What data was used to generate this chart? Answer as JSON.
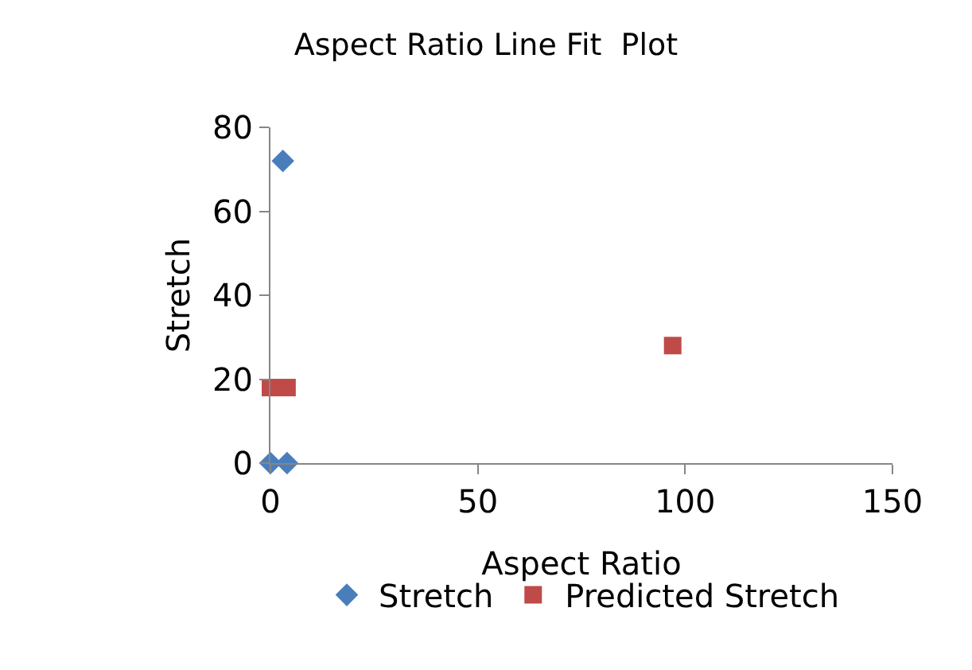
{
  "chart_data": {
    "type": "scatter",
    "title": "Aspect Ratio Line Fit  Plot",
    "xlabel": "Aspect Ratio",
    "ylabel": "Stretch",
    "xlim": [
      0,
      150
    ],
    "xticks": [
      0,
      50,
      100,
      150
    ],
    "ylim": [
      0,
      80
    ],
    "yticks": [
      0,
      20,
      40,
      60,
      80
    ],
    "grid": false,
    "legend": "bottom",
    "series": [
      {
        "name": "Stretch",
        "color": "#4a7ebb",
        "marker": "diamond",
        "x": [
          0,
          4,
          3
        ],
        "values": [
          0,
          0,
          72
        ]
      },
      {
        "name": "Predicted Stretch",
        "color": "#be4b48",
        "marker": "square",
        "x": [
          0,
          3,
          4,
          97
        ],
        "values": [
          18,
          null,
          18,
          28
        ]
      }
    ]
  }
}
